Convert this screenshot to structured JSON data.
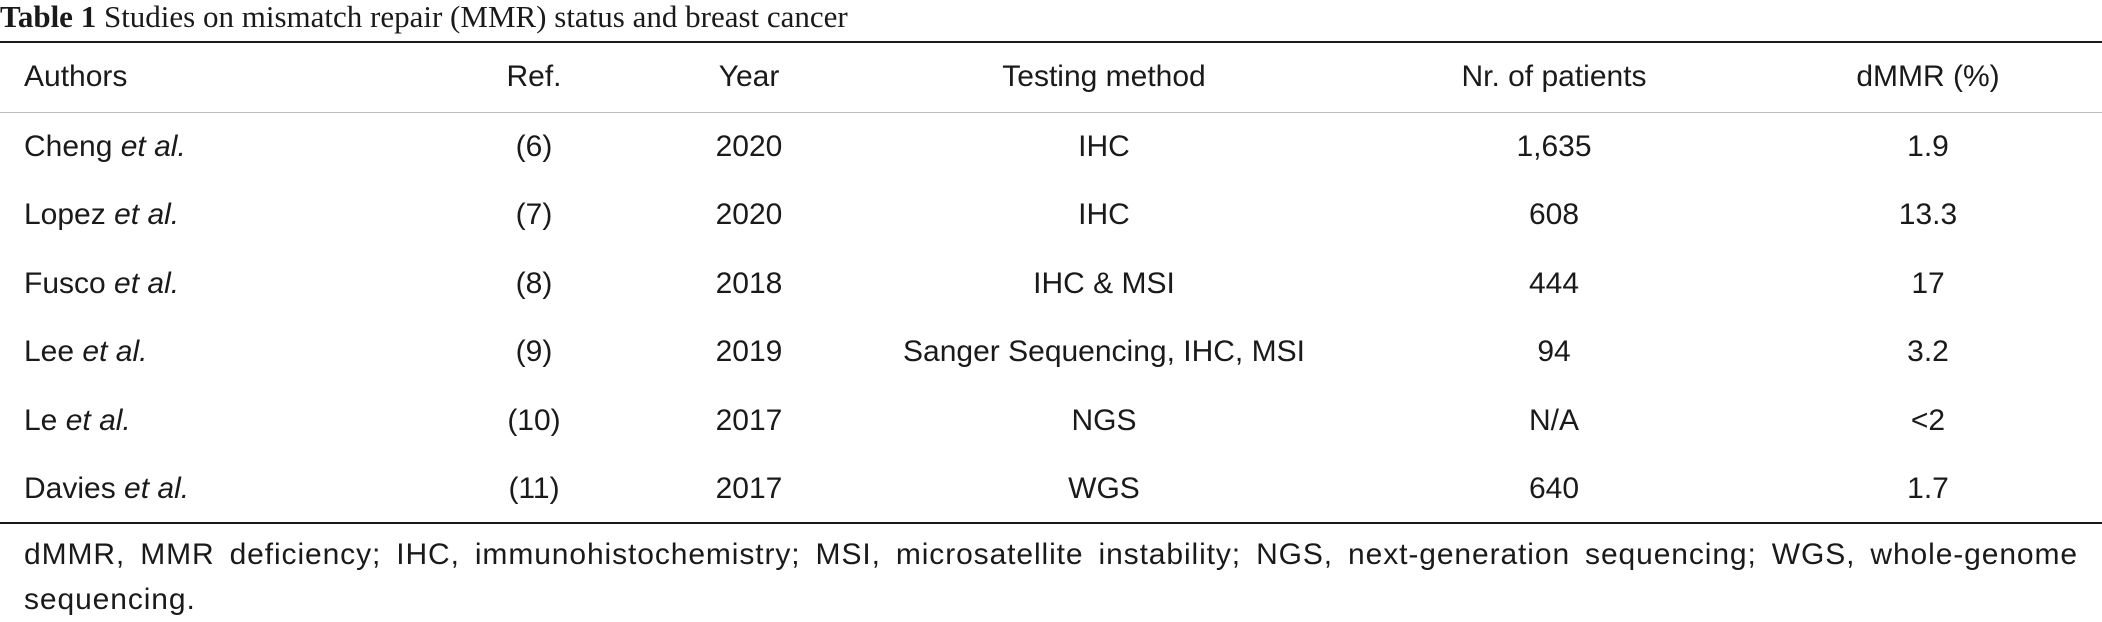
{
  "caption": {
    "label": "Table 1",
    "title": "Studies on mismatch repair (MMR) status and breast cancer"
  },
  "table": {
    "headers": {
      "authors": "Authors",
      "ref": "Ref.",
      "year": "Year",
      "method": "Testing method",
      "patients": "Nr. of patients",
      "dmmr": "dMMR (%)"
    },
    "rows": [
      {
        "author": "Cheng",
        "etal": "et al.",
        "ref": "(6)",
        "year": "2020",
        "method": "IHC",
        "patients": "1,635",
        "dmmr": "1.9"
      },
      {
        "author": "Lopez",
        "etal": "et al.",
        "ref": "(7)",
        "year": "2020",
        "method": "IHC",
        "patients": "608",
        "dmmr": "13.3"
      },
      {
        "author": "Fusco",
        "etal": "et al.",
        "ref": "(8)",
        "year": "2018",
        "method": "IHC & MSI",
        "patients": "444",
        "dmmr": "17"
      },
      {
        "author": "Lee",
        "etal": "et al.",
        "ref": "(9)",
        "year": "2019",
        "method": "Sanger Sequencing, IHC, MSI",
        "patients": "94",
        "dmmr": "3.2"
      },
      {
        "author": "Le",
        "etal": "et al.",
        "ref": "(10)",
        "year": "2017",
        "method": "NGS",
        "patients": "N/A",
        "dmmr": "<2"
      },
      {
        "author": "Davies",
        "etal": "et al.",
        "ref": "(11)",
        "year": "2017",
        "method": "WGS",
        "patients": "640",
        "dmmr": "1.7"
      }
    ]
  },
  "footnote": "dMMR, MMR deficiency; IHC, immunohistochemistry; MSI, microsatellite instability; NGS, next-generation sequencing; WGS, whole-genome sequencing."
}
